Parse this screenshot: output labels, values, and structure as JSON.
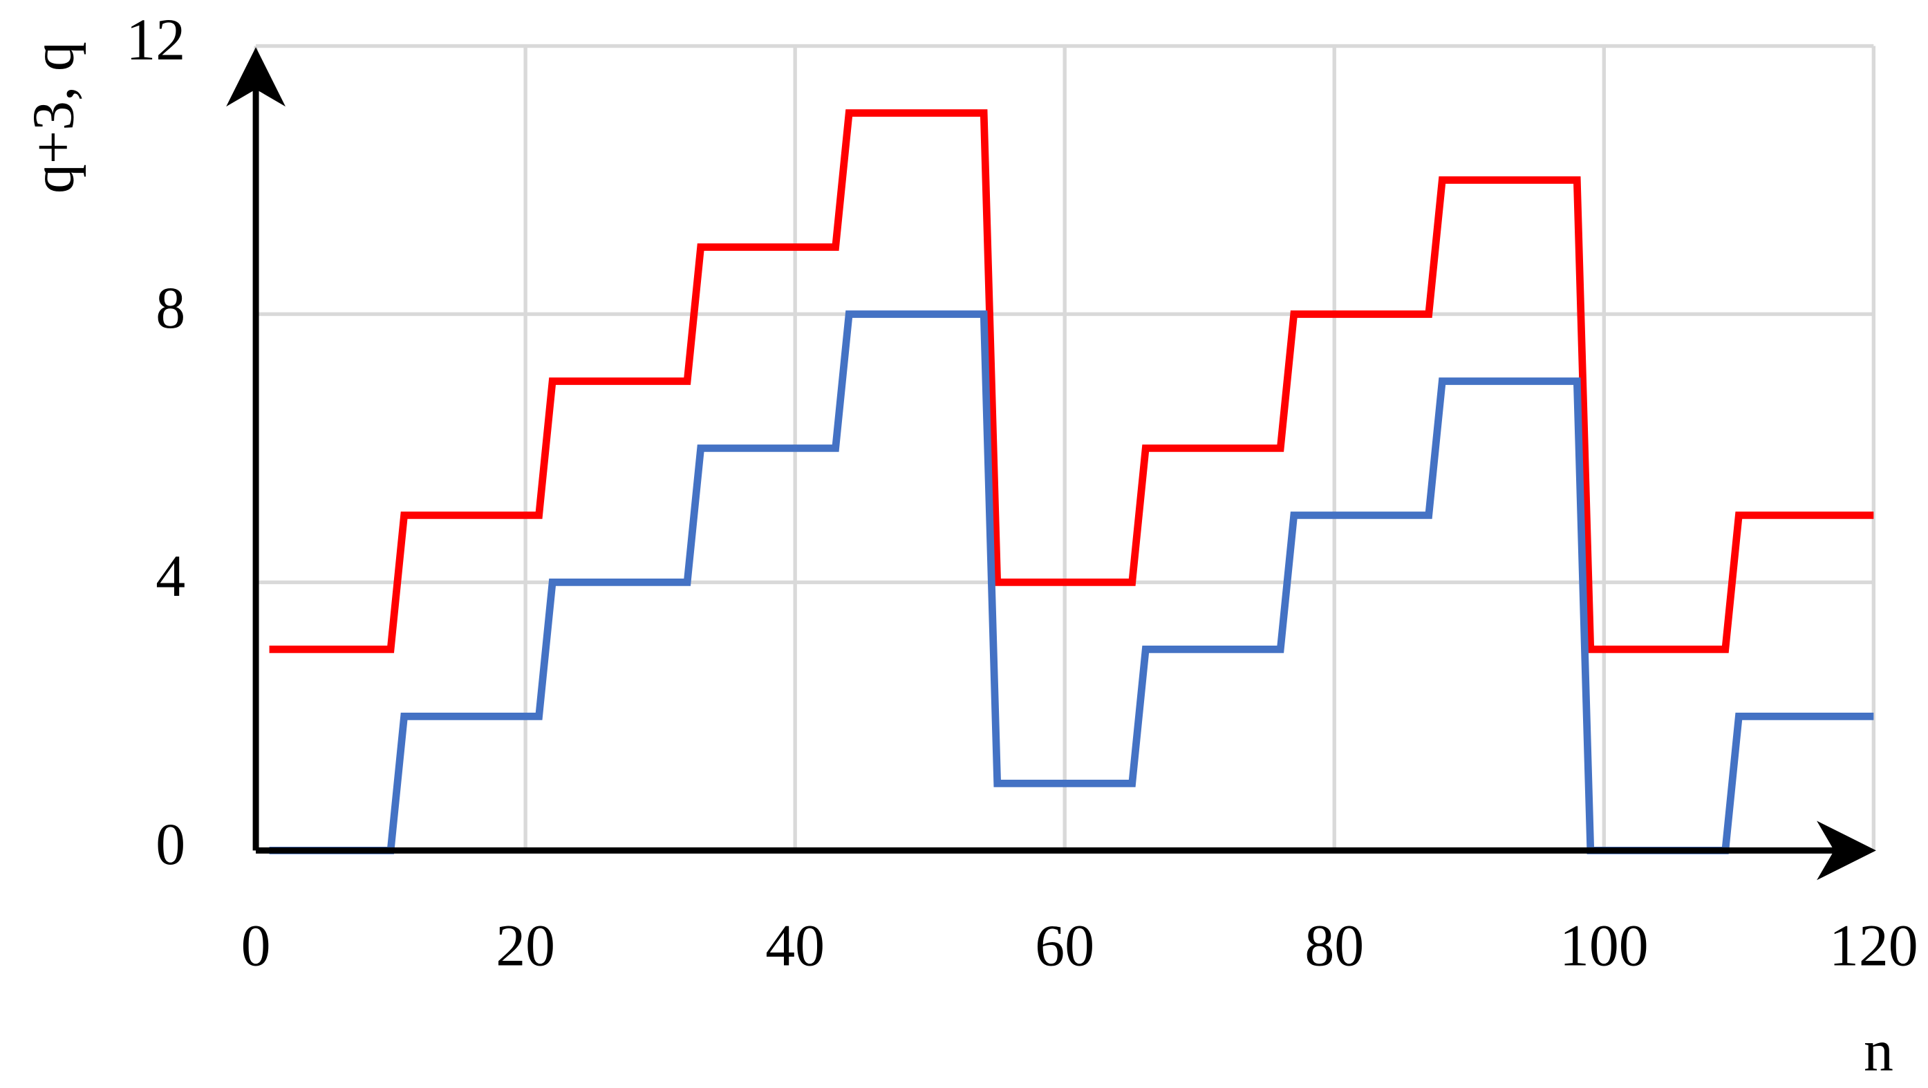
{
  "chart_data": {
    "type": "line",
    "x_label": "n",
    "y_label": "q+3, q",
    "x": [
      1,
      10,
      11,
      21,
      22,
      32,
      33,
      43,
      44,
      54,
      55,
      65,
      66,
      76,
      77,
      87,
      88,
      98,
      99,
      109,
      110,
      120
    ],
    "series": [
      {
        "name": "q+3",
        "color": "#ff0000",
        "values": [
          3,
          3,
          5,
          5,
          7,
          7,
          9,
          9,
          11,
          11,
          4,
          4,
          6,
          6,
          8,
          8,
          10,
          10,
          3,
          3,
          5,
          5
        ]
      },
      {
        "name": "q",
        "color": "#4472c4",
        "values": [
          0,
          0,
          2,
          2,
          4,
          4,
          6,
          6,
          8,
          8,
          1,
          1,
          3,
          3,
          5,
          5,
          7,
          7,
          0,
          0,
          2,
          2
        ]
      }
    ],
    "xlim": [
      0,
      120
    ],
    "ylim": [
      0,
      12
    ],
    "xticks": [
      0,
      20,
      40,
      60,
      80,
      100,
      120
    ],
    "yticks": [
      0,
      4,
      8,
      12
    ],
    "grid": true
  }
}
